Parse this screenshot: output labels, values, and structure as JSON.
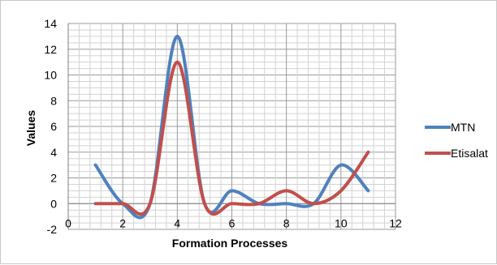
{
  "chart_data": {
    "type": "line",
    "smooth": true,
    "title": "",
    "xlabel": "Formation Processes",
    "ylabel": "Values",
    "xlim": [
      0,
      12
    ],
    "ylim": [
      -2,
      14
    ],
    "x_ticks": [
      "0",
      "2",
      "4",
      "6",
      "8",
      "10",
      "12"
    ],
    "y_ticks": [
      "-2",
      "0",
      "2",
      "4",
      "6",
      "8",
      "10",
      "12",
      "14"
    ],
    "grid": true,
    "legend_position": "right",
    "x": [
      1,
      2,
      3,
      4,
      5,
      6,
      7,
      8,
      9,
      10,
      11
    ],
    "series": [
      {
        "name": "MTN",
        "color": "#4f81bd",
        "values": [
          3,
          0,
          0,
          13,
          0,
          1,
          0,
          0,
          0,
          3,
          1
        ]
      },
      {
        "name": "Etisalat",
        "color": "#c0504d",
        "values": [
          0,
          0,
          0,
          11,
          0,
          0,
          0,
          1,
          0,
          1,
          4
        ]
      }
    ]
  }
}
